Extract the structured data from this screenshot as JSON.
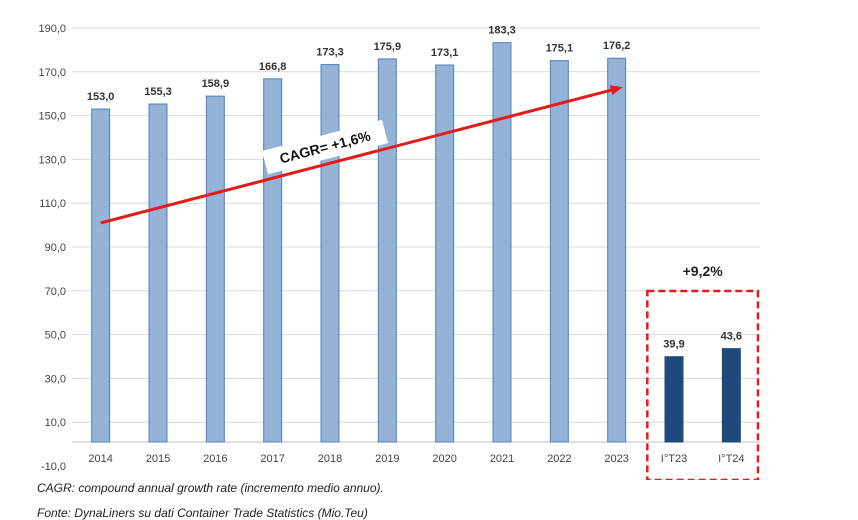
{
  "chart_data": {
    "type": "bar",
    "categories": [
      "2014",
      "2015",
      "2016",
      "2017",
      "2018",
      "2019",
      "2020",
      "2021",
      "2022",
      "2023",
      "I°T23",
      "I°T24"
    ],
    "values": [
      153.0,
      155.3,
      158.9,
      166.8,
      173.3,
      175.9,
      173.1,
      183.3,
      175.1,
      176.2,
      39.9,
      43.6
    ],
    "data_labels": [
      "153,0",
      "155,3",
      "158,9",
      "166,8",
      "173,3",
      "175,9",
      "173,1",
      "183,3",
      "175,1",
      "176,2",
      "39,9",
      "43,6"
    ],
    "ylim": [
      -10,
      190
    ],
    "yticks": [
      -10,
      10,
      30,
      50,
      70,
      90,
      110,
      130,
      150,
      170,
      190
    ],
    "ytick_labels": [
      "-10,0",
      "10,0",
      "30,0",
      "50,0",
      "70,0",
      "90,0",
      "110,0",
      "130,0",
      "150,0",
      "170,0",
      "190,0"
    ],
    "grid": true,
    "colors": {
      "annual_bar": "#95B3D7",
      "annual_bar_edge": "#4F81BD",
      "quarter_bar": "#1F497D",
      "arrow": "#E31B1B",
      "highlight_box": "#E31B1B",
      "grid": "#D9D9D9"
    },
    "annotations": {
      "cagr_label": "CAGR= +1,6%",
      "growth_label": "+9,2%",
      "trend_arrow_from": [
        "2014",
        101
      ],
      "trend_arrow_to": [
        "2023",
        163
      ]
    }
  },
  "notes": {
    "cagr_definition": "CAGR: compound annual growth rate (incremento medio annuo).",
    "source": "Fonte: DynaLiners su dati  Container Trade Statistics (Mio.Teu)"
  }
}
